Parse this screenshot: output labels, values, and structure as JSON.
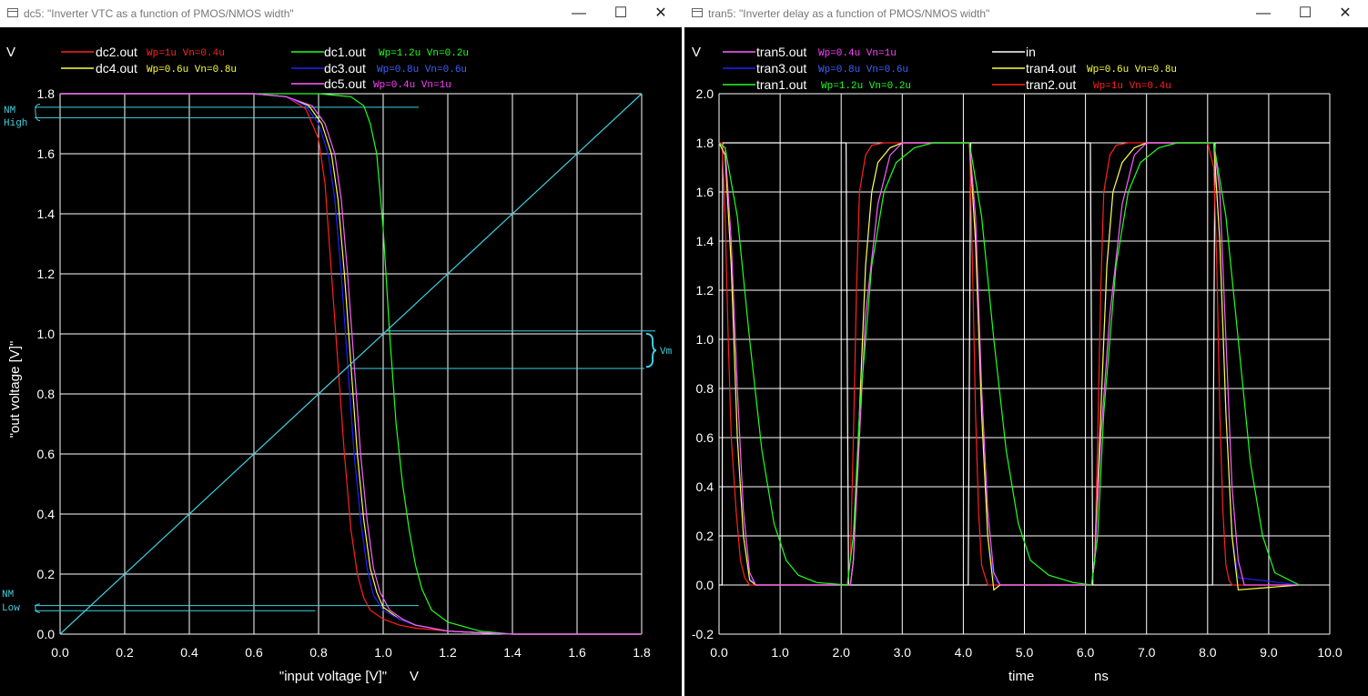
{
  "windows": [
    {
      "title": "dc5: \"Inverter VTC as a function of PMOS/NMOS width\"",
      "unit_label": "V",
      "x_unit_label": "V",
      "legend": [
        {
          "name": "dc2.out",
          "note": "Wp=1u Vn=0.4u",
          "color": "#ff2020",
          "note_color": "#ff2020"
        },
        {
          "name": "dc1.out",
          "note": "Wp=1.2u Vn=0.2u",
          "color": "#20ff20",
          "note_color": "#20ff20"
        },
        {
          "name": "dc4.out",
          "note": "Wp=0.6u Vn=0.8u",
          "color": "#ffff40",
          "note_color": "#ffff40"
        },
        {
          "name": "dc3.out",
          "note": "Wp=0.8u Vn=0.6u",
          "color": "#2020ff",
          "note_color": "#4060ff"
        },
        {
          "name": "dc5.out",
          "note": "Wp=0.4u Vn=1u",
          "color": "#ff60ff",
          "note_color": "#ff40ff"
        }
      ],
      "annotations": {
        "nm_high": [
          "NM",
          "High"
        ],
        "nm_low": [
          "NM",
          "Low"
        ],
        "vm": "Vm"
      },
      "chart_data": {
        "type": "line",
        "xlabel": "\"input voltage [V]\"",
        "ylabel": "\"out voltage [V]\"",
        "xlim": [
          0.0,
          1.8
        ],
        "ylim": [
          0.0,
          1.8
        ],
        "xticks": [
          "0.0",
          "0.2",
          "0.4",
          "0.6",
          "0.8",
          "1.0",
          "1.2",
          "1.4",
          "1.6",
          "1.8"
        ],
        "yticks": [
          "0.0",
          "0.2",
          "0.4",
          "0.6",
          "0.8",
          "1.0",
          "1.2",
          "1.4",
          "1.6",
          "1.8"
        ],
        "grid": true,
        "legend_position": "top",
        "series": [
          {
            "name": "dc2.out",
            "color": "#ff2020",
            "x": [
              0,
              0.6,
              0.7,
              0.76,
              0.8,
              0.82,
              0.84,
              0.86,
              0.88,
              0.9,
              0.92,
              0.94,
              0.96,
              1.0,
              1.05,
              1.1,
              1.2,
              1.3,
              1.4,
              1.8
            ],
            "y": [
              1.8,
              1.8,
              1.79,
              1.75,
              1.65,
              1.5,
              1.2,
              0.9,
              0.6,
              0.35,
              0.2,
              0.12,
              0.08,
              0.05,
              0.03,
              0.02,
              0.01,
              0.005,
              0,
              0
            ]
          },
          {
            "name": "dc1.out",
            "color": "#20ff20",
            "x": [
              0,
              0.8,
              0.9,
              0.94,
              0.96,
              0.98,
              1.0,
              1.02,
              1.04,
              1.06,
              1.08,
              1.1,
              1.12,
              1.15,
              1.2,
              1.3,
              1.4,
              1.8
            ],
            "y": [
              1.8,
              1.8,
              1.79,
              1.76,
              1.7,
              1.6,
              1.35,
              1.0,
              0.7,
              0.5,
              0.35,
              0.23,
              0.15,
              0.08,
              0.04,
              0.01,
              0,
              0
            ]
          },
          {
            "name": "dc4.out",
            "color": "#ffff40",
            "x": [
              0,
              0.6,
              0.7,
              0.77,
              0.81,
              0.84,
              0.86,
              0.88,
              0.9,
              0.92,
              0.94,
              0.96,
              0.98,
              1.0,
              1.05,
              1.1,
              1.2,
              1.3,
              1.4,
              1.8
            ],
            "y": [
              1.8,
              1.8,
              1.79,
              1.76,
              1.7,
              1.6,
              1.45,
              1.2,
              0.9,
              0.6,
              0.38,
              0.22,
              0.14,
              0.09,
              0.05,
              0.03,
              0.01,
              0.005,
              0,
              0
            ]
          },
          {
            "name": "dc3.out",
            "color": "#2020ff",
            "x": [
              0,
              0.6,
              0.7,
              0.76,
              0.8,
              0.83,
              0.85,
              0.87,
              0.89,
              0.91,
              0.93,
              0.95,
              0.97,
              1.0,
              1.05,
              1.1,
              1.2,
              1.3,
              1.4,
              1.8
            ],
            "y": [
              1.8,
              1.8,
              1.79,
              1.76,
              1.7,
              1.6,
              1.45,
              1.2,
              0.9,
              0.6,
              0.38,
              0.22,
              0.13,
              0.08,
              0.05,
              0.03,
              0.01,
              0.005,
              0,
              0
            ]
          },
          {
            "name": "dc5.out",
            "color": "#ff60ff",
            "x": [
              0,
              0.6,
              0.7,
              0.78,
              0.82,
              0.85,
              0.87,
              0.89,
              0.91,
              0.93,
              0.95,
              0.97,
              0.99,
              1.02,
              1.06,
              1.1,
              1.2,
              1.3,
              1.4,
              1.8
            ],
            "y": [
              1.8,
              1.8,
              1.79,
              1.76,
              1.7,
              1.6,
              1.45,
              1.2,
              0.9,
              0.6,
              0.38,
              0.22,
              0.14,
              0.08,
              0.05,
              0.03,
              0.01,
              0.005,
              0,
              0
            ]
          },
          {
            "name": "Vin = Vout",
            "color": "#40d0e0",
            "x": [
              0,
              1.8
            ],
            "y": [
              0,
              1.8
            ]
          }
        ]
      }
    },
    {
      "title": "tran5: \"Inverter delay as a function of PMOS/NMOS width\"",
      "unit_label": "V",
      "x_unit_label": "ns",
      "legend": [
        {
          "name": "tran5.out",
          "note": "Wp=0.4u Vn=1u",
          "color": "#ff60ff",
          "note_color": "#ff40ff"
        },
        {
          "name": "in",
          "note": "",
          "color": "#ffffff",
          "note_color": "#ffffff"
        },
        {
          "name": "tran3.out",
          "note": "Wp=0.8u Vn=0.6u",
          "color": "#2020ff",
          "note_color": "#4060ff"
        },
        {
          "name": "tran4.out",
          "note": "Wp=0.6u Vn=0.8u",
          "color": "#ffff40",
          "note_color": "#ffff40"
        },
        {
          "name": "tran1.out",
          "note": "Wp=1.2u Vn=0.2u",
          "color": "#20ff20",
          "note_color": "#20ff20"
        },
        {
          "name": "tran2.out",
          "note": "Wp=1u Vn=0.4u",
          "color": "#ff2020",
          "note_color": "#ff2020"
        }
      ],
      "chart_data": {
        "type": "line",
        "xlabel": "time",
        "ylabel": "",
        "xlim": [
          0.0,
          10.0
        ],
        "ylim": [
          -0.2,
          2.0
        ],
        "xticks": [
          "0.0",
          "1.0",
          "2.0",
          "3.0",
          "4.0",
          "5.0",
          "6.0",
          "7.0",
          "8.0",
          "9.0",
          "10.0"
        ],
        "yticks": [
          "-0.2",
          "0.0",
          "0.2",
          "0.4",
          "0.6",
          "0.8",
          "1.0",
          "1.2",
          "1.4",
          "1.6",
          "1.8",
          "2.0"
        ],
        "grid": true,
        "legend_position": "top",
        "series": [
          {
            "name": "in",
            "color": "#ffffff",
            "x": [
              0,
              0.05,
              0.06,
              2.08,
              2.1,
              2.12,
              4.08,
              4.1,
              4.12,
              6.08,
              6.1,
              6.12,
              8.08,
              8.1,
              8.12,
              10.0
            ],
            "y": [
              0,
              0,
              1.8,
              1.8,
              0.9,
              0,
              0,
              0.9,
              1.8,
              1.8,
              0.9,
              0,
              0,
              0.9,
              1.8,
              1.8
            ]
          },
          {
            "name": "tran2.out",
            "color": "#ff2020",
            "x": [
              0,
              0.05,
              0.1,
              0.15,
              0.2,
              0.28,
              0.35,
              0.42,
              0.5,
              0.6,
              2.1,
              2.15,
              2.2,
              2.25,
              2.3,
              2.4,
              2.5,
              2.7,
              3.0,
              4.1,
              4.15,
              4.2,
              4.25,
              4.3,
              4.4,
              4.5,
              6.1,
              6.15,
              6.2,
              6.25,
              6.3,
              6.4,
              6.5,
              6.7,
              7.0,
              8.0,
              8.1,
              8.15,
              8.2,
              8.25,
              8.3,
              8.35,
              8.4,
              9.5
            ],
            "y": [
              1.8,
              1.8,
              1.5,
              1.0,
              0.6,
              0.3,
              0.1,
              0.03,
              0,
              0,
              0,
              0.1,
              0.6,
              1.2,
              1.6,
              1.75,
              1.79,
              1.8,
              1.8,
              1.8,
              1.3,
              0.7,
              0.3,
              0.08,
              0,
              0,
              0,
              0.1,
              0.6,
              1.2,
              1.6,
              1.75,
              1.79,
              1.8,
              1.8,
              1.8,
              1.7,
              1.3,
              0.7,
              0.3,
              0.08,
              0.02,
              0,
              0
            ]
          },
          {
            "name": "tran3.out",
            "color": "#2020ff",
            "x": [
              0,
              0.1,
              0.2,
              0.3,
              0.4,
              0.5,
              0.6,
              2.15,
              2.2,
              2.3,
              2.4,
              2.5,
              2.6,
              2.8,
              3.0,
              4.1,
              4.2,
              4.3,
              4.4,
              4.5,
              4.6,
              6.1,
              6.15,
              6.25,
              6.35,
              6.45,
              6.6,
              6.8,
              7.0,
              8.1,
              8.2,
              8.3,
              8.4,
              8.5,
              9.5
            ],
            "y": [
              1.8,
              1.75,
              1.3,
              0.6,
              0.2,
              0.03,
              0,
              0,
              0.1,
              0.7,
              1.3,
              1.6,
              1.72,
              1.78,
              1.8,
              1.8,
              1.4,
              0.7,
              0.2,
              0.03,
              0,
              0,
              0.1,
              0.7,
              1.3,
              1.6,
              1.72,
              1.78,
              1.8,
              1.8,
              1.4,
              0.7,
              0.2,
              0.03,
              0
            ]
          },
          {
            "name": "tran4.out",
            "color": "#ffff40",
            "x": [
              0,
              0.1,
              0.2,
              0.3,
              0.4,
              0.5,
              0.6,
              2.15,
              2.2,
              2.3,
              2.4,
              2.5,
              2.6,
              2.8,
              3.0,
              4.1,
              4.2,
              4.3,
              4.4,
              4.5,
              4.6,
              6.1,
              6.15,
              6.25,
              6.35,
              6.45,
              6.6,
              6.8,
              7.0,
              8.1,
              8.2,
              8.3,
              8.4,
              8.5,
              9.5
            ],
            "y": [
              1.8,
              1.75,
              1.3,
              0.6,
              0.2,
              0.02,
              0,
              0,
              0.1,
              0.7,
              1.3,
              1.6,
              1.72,
              1.78,
              1.8,
              1.8,
              1.4,
              0.7,
              0.2,
              -0.02,
              0,
              0,
              0.1,
              0.7,
              1.3,
              1.6,
              1.72,
              1.78,
              1.8,
              1.8,
              1.4,
              0.7,
              0.2,
              -0.02,
              0
            ]
          },
          {
            "name": "tran5.out",
            "color": "#ff60ff",
            "x": [
              0,
              0.1,
              0.2,
              0.3,
              0.4,
              0.5,
              0.6,
              2.15,
              2.2,
              2.3,
              2.4,
              2.6,
              2.8,
              3.0,
              4.1,
              4.2,
              4.3,
              4.4,
              4.5,
              4.6,
              6.1,
              6.15,
              6.25,
              6.4,
              6.6,
              6.8,
              7.0,
              8.1,
              8.2,
              8.3,
              8.4,
              8.5,
              8.6,
              9.5
            ],
            "y": [
              1.8,
              1.78,
              1.4,
              0.8,
              0.3,
              0.05,
              0,
              0,
              0.1,
              0.6,
              1.1,
              1.55,
              1.75,
              1.8,
              1.8,
              1.5,
              0.8,
              0.3,
              0.05,
              0,
              0,
              0.1,
              0.6,
              1.1,
              1.55,
              1.75,
              1.8,
              1.8,
              1.6,
              1.0,
              0.4,
              0.1,
              0,
              0
            ]
          },
          {
            "name": "tran1.out",
            "color": "#20ff20",
            "x": [
              0,
              0.1,
              0.3,
              0.5,
              0.7,
              0.9,
              1.1,
              1.3,
              1.6,
              2.1,
              2.2,
              2.3,
              2.5,
              2.7,
              2.9,
              3.2,
              3.5,
              4.1,
              4.3,
              4.5,
              4.7,
              4.9,
              5.1,
              5.4,
              5.8,
              6.1,
              6.2,
              6.3,
              6.5,
              6.7,
              6.9,
              7.2,
              7.5,
              8.1,
              8.3,
              8.5,
              8.7,
              8.9,
              9.1,
              9.5
            ],
            "y": [
              1.8,
              1.78,
              1.5,
              1.0,
              0.55,
              0.25,
              0.1,
              0.04,
              0.01,
              0,
              0.2,
              0.7,
              1.3,
              1.6,
              1.72,
              1.78,
              1.8,
              1.8,
              1.5,
              1.0,
              0.55,
              0.25,
              0.1,
              0.04,
              0.01,
              0,
              0.2,
              0.7,
              1.3,
              1.6,
              1.72,
              1.78,
              1.8,
              1.8,
              1.5,
              1.0,
              0.5,
              0.2,
              0.05,
              0
            ]
          }
        ]
      }
    }
  ]
}
